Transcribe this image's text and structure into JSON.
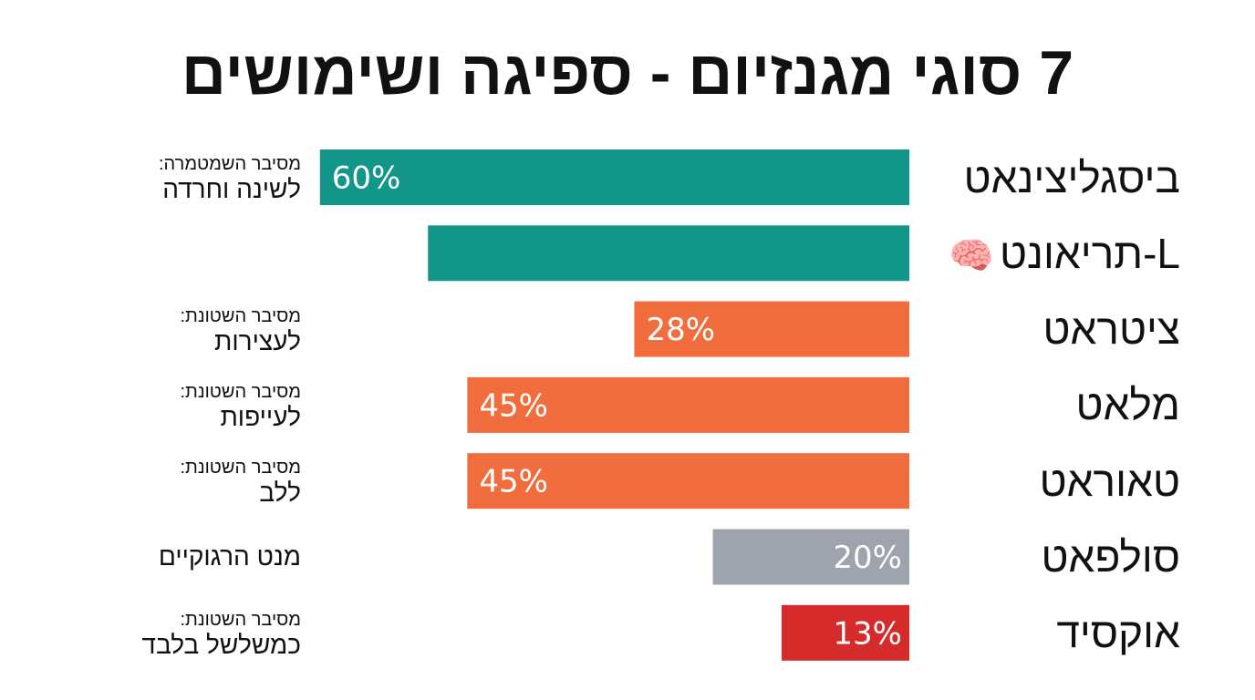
{
  "title": "7 סוגי מגנזיום - ספיגה ושימושים",
  "chart_data": {
    "type": "bar",
    "orientation": "horizontal",
    "direction": "rtl",
    "xlim": [
      0,
      100
    ],
    "categories": [
      "ביסגליצינאט",
      "L-תריאונט",
      "ציטראט",
      "מלאט",
      "טאוראט",
      "סולפאט",
      "אוקסיד"
    ],
    "category_icons": [
      "",
      "brain-icon",
      "",
      "",
      "",
      "",
      ""
    ],
    "values": [
      60,
      49,
      28,
      45,
      45,
      20,
      13
    ],
    "value_labels": [
      "60%",
      "",
      "28%",
      "45%",
      "45%",
      "20%",
      "13%"
    ],
    "label_side": [
      "far",
      "far",
      "far",
      "far",
      "far",
      "near",
      "near"
    ],
    "bar_colors": [
      "#13968a",
      "#13968a",
      "#f26d3d",
      "#f26d3d",
      "#f26d3d",
      "#9ea3ad",
      "#d52b2b"
    ],
    "notes": [
      {
        "small": "מסיבר השמטמרה:",
        "big": "לשינה וחרדה"
      },
      {
        "small": "",
        "big": ""
      },
      {
        "small": "מסיבר השטונת:",
        "big": "לעצירות"
      },
      {
        "small": "מסיבר השטונת:",
        "big": "לעייפות"
      },
      {
        "small": "מסיבר השטונת:",
        "big": "ללב"
      },
      {
        "small": "",
        "big": "מנט הרגוקיים"
      },
      {
        "small": "מסיבר השטונת:",
        "big": "כמשלשל בלבד"
      }
    ]
  }
}
